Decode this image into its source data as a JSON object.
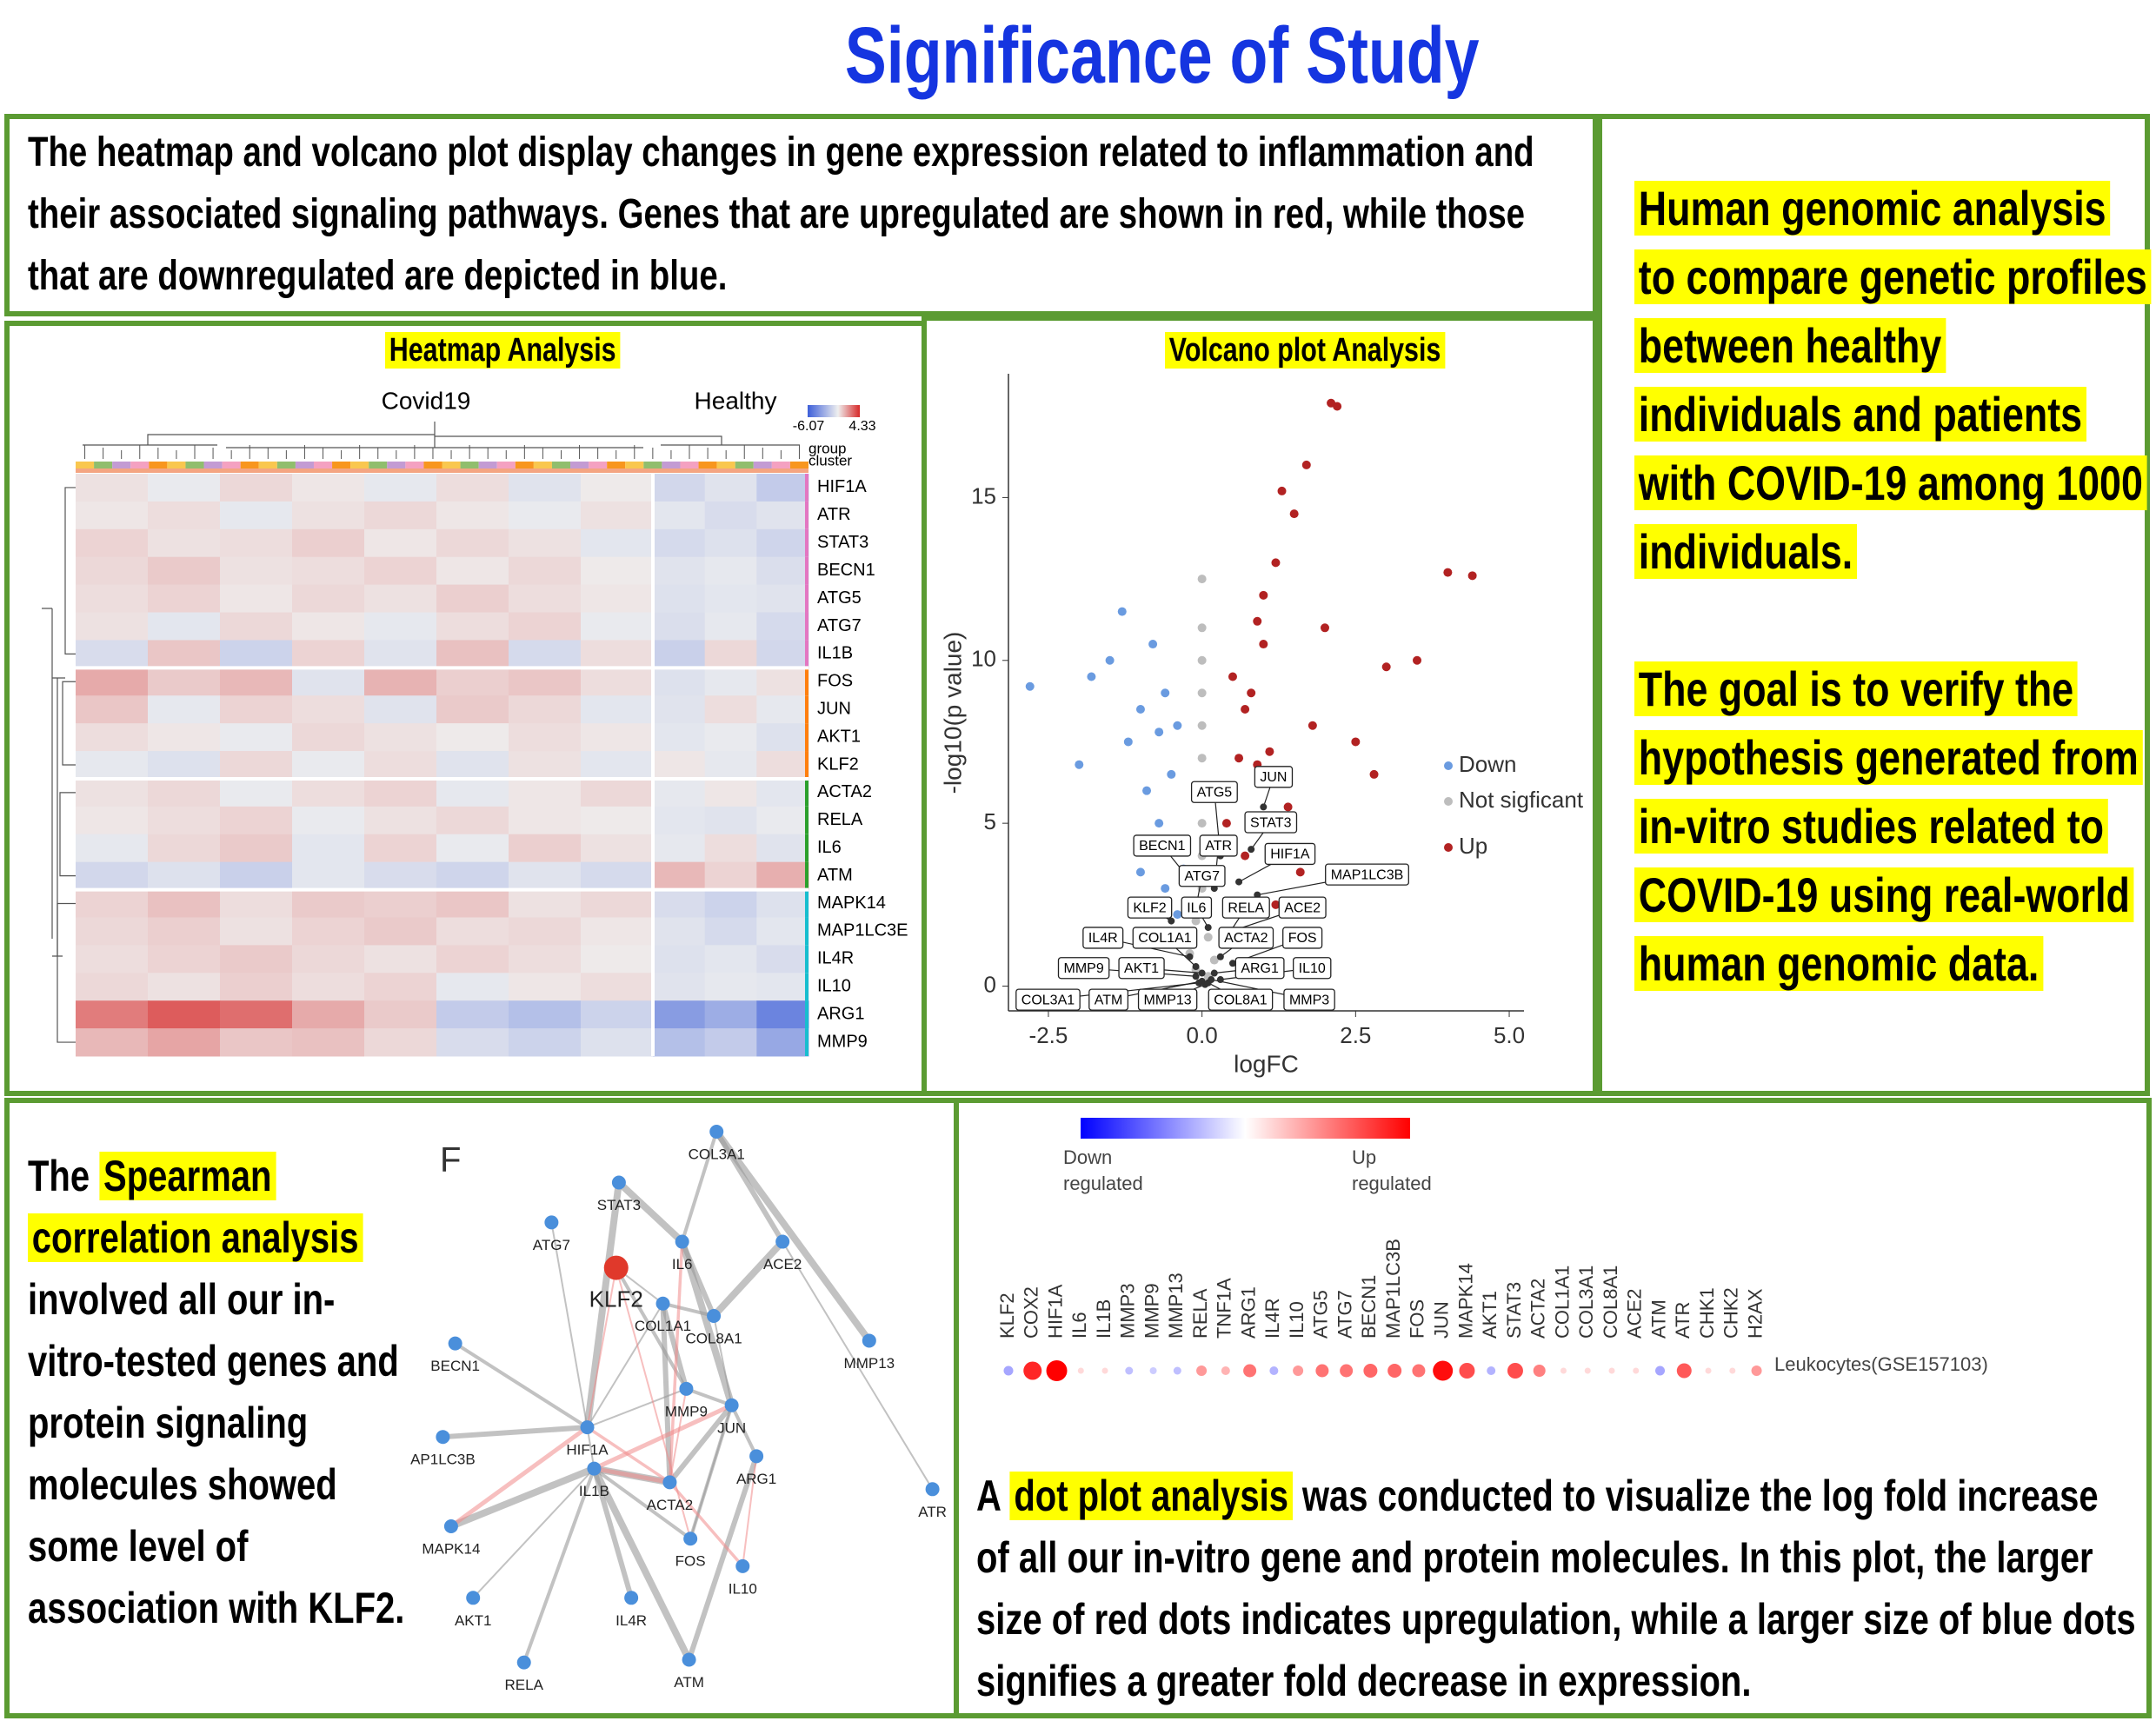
{
  "title": "Significance of Study",
  "intro": "The heatmap and volcano plot display changes in gene expression related to inflammation and their associated signaling pathways. Genes that are upregulated are shown in red, while those that are downregulated are depicted in blue.",
  "summary": [
    "Human genomic analysis to compare genetic profiles between healthy individuals and patients with COVID-19 among 1000 individuals.",
    "The goal is to verify the hypothesis generated from in-vitro studies related to COVID-19 using real-world human genomic data."
  ],
  "spearman": {
    "before": "The",
    "highlight": "Spearman correlation analysis",
    "after": "involved all our in-vitro-tested genes and protein signaling molecules showed some level of association with KLF2."
  },
  "dotplot_text": {
    "before": "A",
    "highlight": "dot plot analysis",
    "after": "was conducted to visualize the log fold increase of all our in-vitro gene and protein molecules. In this plot, the larger size of red dots indicates upregulation, while a larger size of blue dots signifies a greater fold decrease in expression."
  },
  "chart_data": [
    {
      "type": "heatmap",
      "title": "Heatmap Analysis",
      "groups": [
        "Covid19",
        "Healthy"
      ],
      "track_labels": [
        "group",
        "cluster"
      ],
      "colorbar": {
        "min": -6.07,
        "max": 4.33
      },
      "low_color": "#3d5fd9",
      "mid_color": "#efefef",
      "high_color": "#d62828",
      "rows": [
        "HIF1A",
        "ATR",
        "STAT3",
        "BECN1",
        "ATG5",
        "ATG7",
        "IL1B",
        "FOS",
        "JUN",
        "AKT1",
        "KLF2",
        "ACTA2",
        "RELA",
        "IL6",
        "ATM",
        "MAPK14",
        "MAP1LC3E",
        "IL4R",
        "IL10",
        "ARG1",
        "MMP9"
      ],
      "values": [
        [
          [
            0.3,
            -0.2,
            0.5,
            0.2,
            -0.3,
            0.4,
            -0.5,
            0.1
          ],
          [
            -1.0,
            -0.5,
            -1.5
          ]
        ],
        [
          [
            0.2,
            0.4,
            -0.3,
            0.3,
            0.5,
            0.2,
            -0.2,
            0.3
          ],
          [
            -0.4,
            -0.8,
            -0.5
          ]
        ],
        [
          [
            0.6,
            0.3,
            0.4,
            0.7,
            0.2,
            0.5,
            0.3,
            -0.4
          ],
          [
            -0.9,
            -0.6,
            -1.1
          ]
        ],
        [
          [
            0.5,
            0.8,
            0.3,
            0.4,
            0.6,
            0.2,
            0.5,
            0.1
          ],
          [
            -0.5,
            -0.3,
            -0.7
          ]
        ],
        [
          [
            0.4,
            0.6,
            0.2,
            0.5,
            0.3,
            0.7,
            0.4,
            0.2
          ],
          [
            -0.6,
            -0.4,
            -0.5
          ]
        ],
        [
          [
            0.3,
            -0.4,
            0.5,
            0.2,
            -0.3,
            0.4,
            0.6,
            -0.2
          ],
          [
            -0.7,
            -0.3,
            -0.9
          ]
        ],
        [
          [
            -0.8,
            0.9,
            -1.2,
            0.6,
            -0.5,
            1.0,
            -0.9,
            0.4
          ],
          [
            -1.3,
            0.5,
            -1.0
          ]
        ],
        [
          [
            1.5,
            0.8,
            1.2,
            -0.5,
            1.3,
            0.7,
            0.9,
            0.4
          ],
          [
            -0.6,
            -0.3,
            0.3
          ]
        ],
        [
          [
            0.9,
            -0.3,
            0.6,
            0.4,
            -0.5,
            0.8,
            0.5,
            -0.4
          ],
          [
            -0.5,
            0.4,
            -0.3
          ]
        ],
        [
          [
            0.4,
            0.2,
            -0.2,
            0.5,
            0.3,
            0.1,
            0.4,
            0.2
          ],
          [
            -0.4,
            -0.2,
            -0.6
          ]
        ],
        [
          [
            -0.3,
            -0.6,
            0.5,
            -0.2,
            0.4,
            -0.5,
            0.3,
            -0.4
          ],
          [
            0.2,
            -0.3,
            0.4
          ]
        ],
        [
          [
            0.3,
            0.5,
            -0.2,
            0.4,
            0.6,
            -0.3,
            0.2,
            0.5
          ],
          [
            -0.3,
            0.2,
            -0.4
          ]
        ],
        [
          [
            0.2,
            0.4,
            0.6,
            -0.2,
            0.3,
            0.5,
            0.2,
            0.1
          ],
          [
            -0.4,
            -0.5,
            -0.2
          ]
        ],
        [
          [
            -0.3,
            0.5,
            0.8,
            -0.4,
            0.6,
            -0.2,
            0.7,
            0.3
          ],
          [
            -0.3,
            0.4,
            -0.5
          ]
        ],
        [
          [
            -1.0,
            -0.6,
            -1.3,
            -0.4,
            -0.8,
            -1.1,
            -0.5,
            -0.9
          ],
          [
            1.2,
            0.6,
            1.4
          ]
        ],
        [
          [
            0.6,
            1.0,
            0.4,
            0.8,
            0.7,
            0.9,
            0.3,
            0.5
          ],
          [
            -0.8,
            -1.2,
            -0.6
          ]
        ],
        [
          [
            0.5,
            0.7,
            0.3,
            0.6,
            0.8,
            0.4,
            0.5,
            0.2
          ],
          [
            -0.5,
            -0.9,
            -0.4
          ]
        ],
        [
          [
            0.4,
            0.6,
            0.8,
            0.5,
            0.3,
            0.6,
            0.4,
            0.1
          ],
          [
            -0.6,
            -0.4,
            -0.8
          ]
        ],
        [
          [
            0.5,
            0.3,
            0.7,
            0.4,
            0.6,
            -0.3,
            0.2,
            0.4
          ],
          [
            -0.5,
            -0.3,
            -0.4
          ]
        ],
        [
          [
            2.5,
            3.2,
            2.8,
            1.5,
            0.8,
            -1.5,
            -2.0,
            -1.2
          ],
          [
            -3.5,
            -2.8,
            -4.5
          ]
        ],
        [
          [
            1.2,
            1.6,
            0.9,
            1.0,
            0.5,
            -0.8,
            -1.2,
            -0.6
          ],
          [
            -2.0,
            -1.5,
            -3.0
          ]
        ]
      ]
    },
    {
      "type": "scatter",
      "title": "Volcano plot Analysis",
      "xlabel": "logFC",
      "ylabel": "-log10(p value)",
      "xlim": [
        -3.15,
        5.24
      ],
      "ylim": [
        -0.76,
        18.8
      ],
      "xticks": [
        -2.5,
        {
          "value": 0,
          "label": "0.0"
        },
        2.5,
        {
          "value": 5,
          "label": "5.0"
        }
      ],
      "yticks": [
        0,
        5,
        10,
        15
      ],
      "series": [
        {
          "name": "Down",
          "color": "#6a9be0",
          "x": [
            -2.8,
            -2.0,
            -1.8,
            -1.5,
            -1.3,
            -1.2,
            -1.0,
            -1.0,
            -0.9,
            -0.8,
            -0.8,
            -0.7,
            -0.7,
            -0.6,
            -0.6,
            -0.5,
            -0.5,
            -0.4,
            -0.4,
            -0.3
          ],
          "y": [
            9.2,
            6.8,
            9.5,
            10.0,
            11.5,
            7.5,
            8.5,
            3.5,
            6.0,
            10.5,
            2.5,
            5.0,
            7.8,
            3.0,
            9.0,
            4.2,
            6.5,
            2.2,
            8.0,
            3.6
          ]
        },
        {
          "name": "Not sigficant",
          "color": "#bdbdbd",
          "x": [
            0,
            0,
            0,
            0,
            0,
            0,
            0,
            0,
            0,
            0,
            -0.1,
            0.1,
            -0.2,
            0.2,
            -0.1,
            0.1
          ],
          "y": [
            12.5,
            11,
            10,
            9,
            8,
            7,
            6,
            5,
            4,
            3,
            2,
            1.5,
            1,
            0.8,
            0.5,
            0.3
          ]
        },
        {
          "name": "Up",
          "color": "#b22222",
          "x": [
            2.1,
            2.2,
            1.7,
            1.5,
            1.3,
            1.2,
            1.0,
            1.0,
            0.9,
            0.8,
            0.7,
            0.6,
            0.5,
            0.5,
            0.4,
            0.3,
            1.8,
            2.5,
            3.0,
            4.0,
            4.4,
            3.5,
            2.8,
            1.4,
            1.1,
            0.9,
            0.7,
            2.0,
            1.6,
            1.2
          ],
          "y": [
            17.9,
            17.8,
            16.0,
            14.5,
            15.2,
            13.0,
            12.0,
            10.5,
            11.2,
            9.0,
            8.5,
            7.0,
            6.0,
            9.5,
            5.0,
            4.5,
            8.0,
            7.5,
            9.8,
            12.7,
            12.6,
            10.0,
            6.5,
            5.5,
            7.2,
            6.8,
            4.0,
            11.0,
            3.5,
            2.5
          ]
        }
      ],
      "labeled_genes": {
        "names": [
          "JUN",
          "ATG5",
          "STAT3",
          "BECN1",
          "ATR",
          "HIF1A",
          "MAP1LC3B",
          "ATG7",
          "KLF2",
          "IL6",
          "RELA",
          "ACE2",
          "IL4R",
          "COL1A1",
          "ACTA2",
          "FOS",
          "MMP9",
          "AKT1",
          "ARG1",
          "IL10",
          "COL3A1",
          "ATM",
          "MMP13",
          "COL8A1",
          "MMP3"
        ],
        "x": [
          1.0,
          0.3,
          0.8,
          -0.3,
          0.2,
          0.6,
          0.9,
          -0.1,
          -0.5,
          0.1,
          0.4,
          0.5,
          -0.2,
          -0.1,
          0.3,
          0.5,
          -0.1,
          0,
          0.2,
          0.3,
          -0.05,
          0,
          0.05,
          0.1,
          0.15
        ],
        "y": [
          5.5,
          4.0,
          4.2,
          3.5,
          3.0,
          3.2,
          2.8,
          2.4,
          2.0,
          1.8,
          1.5,
          1.7,
          0.9,
          0.6,
          0.9,
          0.7,
          0.3,
          0.4,
          0.4,
          0.2,
          0.1,
          0.15,
          0.05,
          0.1,
          0.2
        ]
      }
    },
    {
      "type": "dot",
      "categories": [
        "KLF2",
        "COX2",
        "HIF1A",
        "IL6",
        "IL1B",
        "MMP3",
        "MMP9",
        "MMP13",
        "RELA",
        "TNF1A",
        "ARG1",
        "IL4R",
        "IL10",
        "ATG5",
        "ATG7",
        "BECN1",
        "MAP1LC3B",
        "FOS",
        "JUN",
        "MAPK14",
        "AKT1",
        "STAT3",
        "ACTA2",
        "COL1A1",
        "COL3A1",
        "COL8A1",
        "ACE2",
        "ATM",
        "ATR",
        "CHK1",
        "CHK2",
        "H2AX"
      ],
      "values": [
        -0.5,
        1.5,
        1.8,
        0.1,
        0.1,
        -0.3,
        -0.2,
        -0.3,
        0.6,
        0.4,
        0.9,
        -0.4,
        0.6,
        0.9,
        0.9,
        1.0,
        1.0,
        0.9,
        1.7,
        1.2,
        -0.4,
        1.2,
        0.8,
        0.1,
        0.1,
        0.1,
        0.1,
        -0.5,
        1.1,
        0.1,
        0.1,
        0.6
      ],
      "row_label": "Leukocytes(GSE157103)",
      "colorbar_labels": [
        [
          "Down",
          "regulated"
        ],
        [
          "Up",
          "regulated"
        ]
      ],
      "low_color": "#0000ff",
      "high_color": "#ff0000"
    }
  ],
  "network": {
    "panel_label": "F",
    "node_color": "#4a8fdb",
    "nodes": [
      {
        "label": "STAT3"
      },
      {
        "label": "COL3A1"
      },
      {
        "label": "ATG7"
      },
      {
        "label": "IL6"
      },
      {
        "label": "ACE2"
      },
      {
        "label": "KLF2",
        "color": "#e0392b"
      },
      {
        "label": "COL1A1"
      },
      {
        "label": "COL8A1"
      },
      {
        "label": "MMP13"
      },
      {
        "label": "BECN1"
      },
      {
        "label": "MMP9"
      },
      {
        "label": "JUN"
      },
      {
        "label": "HIF1A"
      },
      {
        "label": "AP1LC3B"
      },
      {
        "label": "IL1B"
      },
      {
        "label": "ARG1"
      },
      {
        "label": "ACTA2"
      },
      {
        "label": "ATR"
      },
      {
        "label": "MAPK14"
      },
      {
        "label": "FOS"
      },
      {
        "label": "IL10"
      },
      {
        "label": "AKT1"
      },
      {
        "label": "IL4R"
      },
      {
        "label": "RELA"
      },
      {
        "label": "ATM"
      }
    ]
  }
}
